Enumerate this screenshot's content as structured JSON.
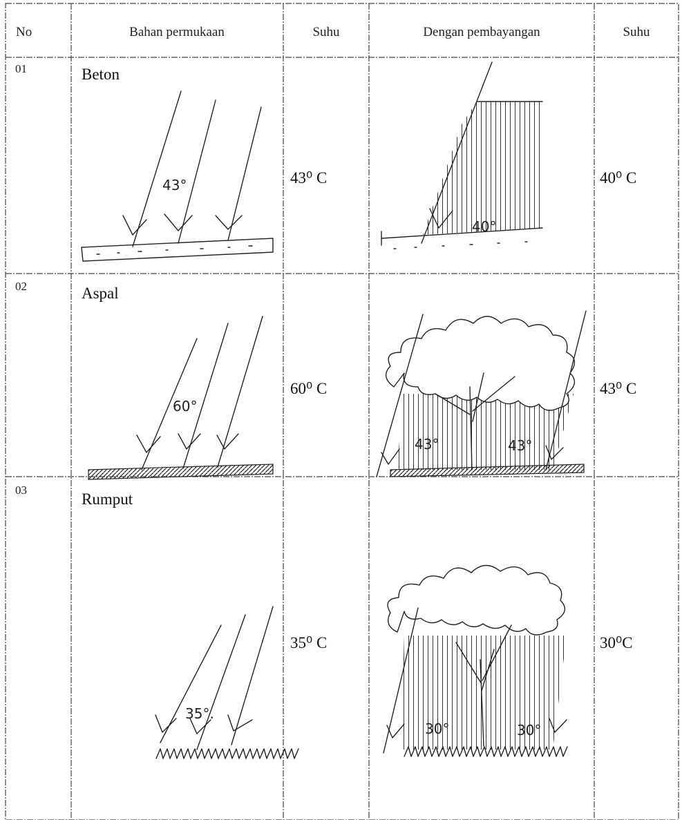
{
  "header": [
    "No",
    "Bahan permukaan",
    "Suhu",
    "Dengan pembayangan",
    "Suhu"
  ],
  "rows": [
    {
      "no": "01",
      "material": "Beton",
      "temperature": "43⁰ C",
      "shaded_temperature": "40⁰ C",
      "sketch_labels": [
        "43°"
      ],
      "shaded_sketch_labels": [
        "40°"
      ]
    },
    {
      "no": "02",
      "material": "Aspal",
      "temperature": "60⁰ C",
      "shaded_temperature": "43⁰ C",
      "sketch_labels": [
        "60°"
      ],
      "shaded_sketch_labels": [
        "43°",
        "43°"
      ]
    },
    {
      "no": "03",
      "material": "Rumput",
      "temperature": "35⁰ C",
      "shaded_temperature": "30⁰C",
      "sketch_labels": [
        "35°."
      ],
      "shaded_sketch_labels": [
        "30°",
        "30°"
      ]
    }
  ]
}
